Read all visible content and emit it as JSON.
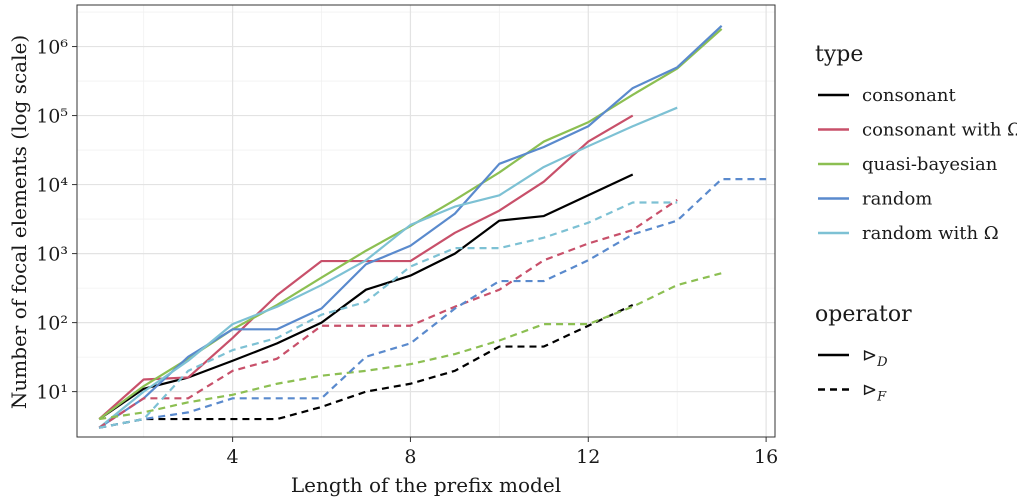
{
  "chart_data": {
    "type": "line",
    "xlabel": "Length of the prefix model",
    "ylabel": "Number of focal elements (log scale)",
    "yscale": "log",
    "xlim": [
      0.5,
      16.2
    ],
    "ylim": [
      2.2,
      4000000
    ],
    "xticks": [
      4,
      8,
      12,
      16
    ],
    "yticks": [
      {
        "value": 10,
        "label": "10¹"
      },
      {
        "value": 100,
        "label": "10²"
      },
      {
        "value": 1000,
        "label": "10³"
      },
      {
        "value": 10000,
        "label": "10⁴"
      },
      {
        "value": 100000,
        "label": "10⁵"
      },
      {
        "value": 1000000,
        "label": "10⁶"
      }
    ],
    "grid": true,
    "legend_position": "right",
    "legend": {
      "type_title": "type",
      "operator_title": "operator",
      "types": [
        {
          "key": "consonant",
          "label": "consonant",
          "color": "#000000"
        },
        {
          "key": "consonant_omega",
          "label": "consonant with Ω",
          "color": "#c8506a"
        },
        {
          "key": "quasi_bayesian",
          "label": "quasi-bayesian",
          "color": "#8cbf52"
        },
        {
          "key": "random",
          "label": "random",
          "color": "#5a8acd"
        },
        {
          "key": "random_omega",
          "label": "random with Ω",
          "color": "#7dc1d4"
        }
      ],
      "operators": [
        {
          "key": "D",
          "label": "⊳",
          "sub": "D",
          "dash": "solid"
        },
        {
          "key": "F",
          "label": "⊳",
          "sub": "F",
          "dash": "dashed"
        }
      ]
    },
    "series": [
      {
        "type": "consonant",
        "operator": "D",
        "x": [
          1,
          2,
          3,
          4,
          5,
          6,
          7,
          8,
          9,
          10,
          11,
          12,
          13
        ],
        "y": [
          4,
          11,
          16,
          28,
          50,
          100,
          300,
          480,
          1000,
          3000,
          3500,
          7000,
          14000
        ]
      },
      {
        "type": "consonant_omega",
        "operator": "D",
        "x": [
          1,
          2,
          3,
          4,
          5,
          6,
          7,
          8,
          9,
          10,
          11,
          12,
          13
        ],
        "y": [
          4,
          15,
          16,
          60,
          250,
          780,
          780,
          780,
          2000,
          4200,
          11000,
          42000,
          100000
        ]
      },
      {
        "type": "quasi_bayesian",
        "operator": "D",
        "x": [
          1,
          2,
          3,
          4,
          5,
          6,
          7,
          8,
          9,
          10,
          11,
          12,
          13,
          14,
          15
        ],
        "y": [
          4,
          12,
          30,
          80,
          180,
          450,
          1100,
          2500,
          6000,
          15000,
          42000,
          80000,
          200000,
          480000,
          1800000
        ]
      },
      {
        "type": "random",
        "operator": "D",
        "x": [
          1,
          2,
          3,
          4,
          5,
          6,
          7,
          8,
          9,
          10,
          11,
          12,
          13,
          14,
          15
        ],
        "y": [
          3,
          8,
          32,
          80,
          80,
          160,
          700,
          1300,
          3800,
          20000,
          35000,
          70000,
          250000,
          500000,
          2000000
        ]
      },
      {
        "type": "random_omega",
        "operator": "D",
        "x": [
          1,
          2,
          3,
          4,
          5,
          6,
          7,
          8,
          9,
          10,
          11,
          12,
          13,
          14
        ],
        "y": [
          3,
          10,
          28,
          95,
          170,
          350,
          800,
          2600,
          4800,
          7000,
          18000,
          36000,
          70000,
          130000
        ]
      },
      {
        "type": "consonant",
        "operator": "F",
        "x": [
          1,
          2,
          3,
          4,
          5,
          6,
          7,
          8,
          9,
          10,
          11,
          12,
          13
        ],
        "y": [
          3,
          4,
          4,
          4,
          4,
          6,
          10,
          13,
          20,
          45,
          45,
          90,
          180
        ]
      },
      {
        "type": "consonant_omega",
        "operator": "F",
        "x": [
          1,
          2,
          3,
          4,
          5,
          6,
          7,
          8,
          9,
          10,
          11,
          12,
          13,
          14
        ],
        "y": [
          3,
          8,
          8,
          20,
          30,
          90,
          90,
          90,
          170,
          300,
          800,
          1400,
          2200,
          6000
        ]
      },
      {
        "type": "quasi_bayesian",
        "operator": "F",
        "x": [
          1,
          2,
          3,
          4,
          5,
          6,
          7,
          8,
          9,
          10,
          11,
          12,
          13,
          14,
          15
        ],
        "y": [
          4,
          5,
          7,
          9,
          13,
          17,
          20,
          25,
          35,
          55,
          95,
          95,
          170,
          350,
          520
        ]
      },
      {
        "type": "random",
        "operator": "F",
        "x": [
          1,
          2,
          3,
          4,
          5,
          6,
          7,
          8,
          9,
          10,
          11,
          12,
          13,
          14,
          15,
          16
        ],
        "y": [
          3,
          4,
          5,
          8,
          8,
          8,
          32,
          50,
          160,
          400,
          400,
          800,
          1900,
          3000,
          12000,
          12000
        ]
      },
      {
        "type": "random_omega",
        "operator": "F",
        "x": [
          1,
          2,
          3,
          4,
          5,
          6,
          7,
          8,
          9,
          10,
          11,
          12,
          13,
          14
        ],
        "y": [
          3,
          4,
          20,
          40,
          60,
          130,
          200,
          650,
          1200,
          1200,
          1700,
          2800,
          5500,
          5500
        ]
      }
    ]
  }
}
